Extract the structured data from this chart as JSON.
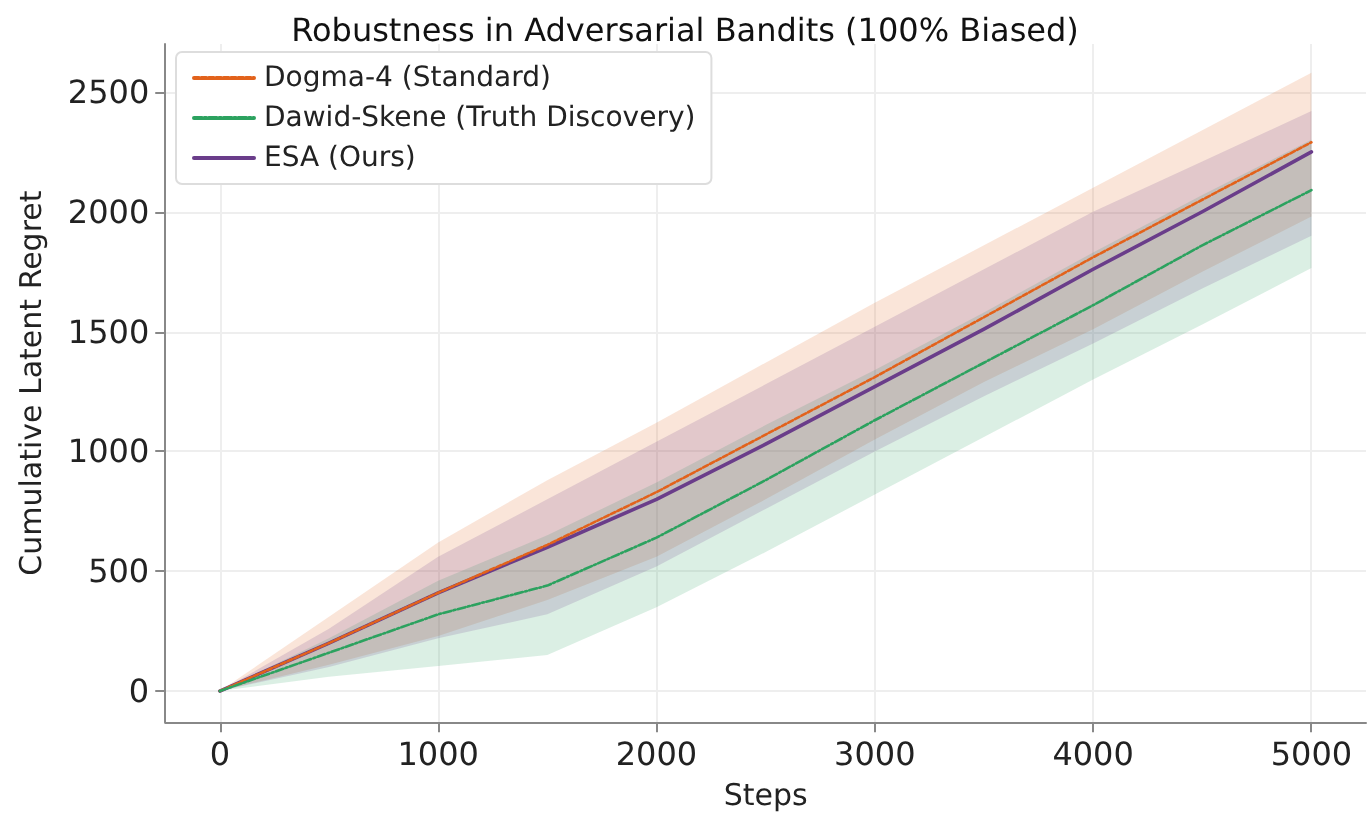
{
  "chart_data": {
    "type": "line",
    "title": "Robustness in Adversarial Bandits (100% Biased)",
    "xlabel": "Steps",
    "ylabel": "Cumulative Latent Regret",
    "x": [
      0,
      500,
      1000,
      1500,
      2000,
      2500,
      3000,
      3500,
      4000,
      4500,
      5000
    ],
    "series": [
      {
        "name": "Dogma-4 (Standard)",
        "color": "#e2621b",
        "line_style": "dashed",
        "values": [
          0,
          200,
          410,
          610,
          830,
          1070,
          1310,
          1560,
          1810,
          2050,
          2290
        ],
        "lower": [
          0,
          110,
          230,
          380,
          560,
          800,
          1050,
          1290,
          1510,
          1750,
          1980
        ],
        "upper": [
          0,
          310,
          620,
          880,
          1120,
          1370,
          1620,
          1860,
          2100,
          2340,
          2580
        ]
      },
      {
        "name": "Dawid-Skene (Truth Discovery)",
        "color": "#2ca25f",
        "line_style": "dashdot",
        "values": [
          0,
          160,
          320,
          440,
          640,
          880,
          1130,
          1370,
          1610,
          1860,
          2090
        ],
        "lower": [
          0,
          60,
          105,
          150,
          350,
          580,
          820,
          1060,
          1300,
          1530,
          1765
        ],
        "upper": [
          0,
          220,
          460,
          650,
          870,
          1110,
          1340,
          1580,
          1830,
          2070,
          2300
        ]
      },
      {
        "name": "ESA (Ours)",
        "color": "#6a3d8a",
        "line_style": "solid",
        "values": [
          0,
          200,
          410,
          600,
          800,
          1030,
          1270,
          1510,
          1760,
          2000,
          2250
        ],
        "lower": [
          0,
          100,
          220,
          320,
          520,
          760,
          1000,
          1230,
          1450,
          1680,
          1900
        ],
        "upper": [
          0,
          260,
          560,
          800,
          1040,
          1280,
          1520,
          1760,
          2000,
          2210,
          2420
        ]
      }
    ],
    "xlim": [
      -250,
      5250
    ],
    "ylim": [
      -130,
      2700
    ],
    "xticks": [
      0,
      {
        "value": 1000,
        "label": "1000"
      },
      {
        "value": 2000,
        "label": "2000"
      },
      {
        "value": 3000,
        "label": "3000"
      },
      {
        "value": 4000,
        "label": "4000"
      },
      {
        "value": 5000,
        "label": "5000"
      }
    ],
    "yticks": [
      0,
      500,
      {
        "value": 1000,
        "label": "1000"
      },
      {
        "value": 1500,
        "label": "1500"
      },
      {
        "value": 2000,
        "label": "2000"
      },
      {
        "value": 2500,
        "label": "2500"
      }
    ],
    "grid": true,
    "legend": "top left",
    "marker": "none"
  }
}
